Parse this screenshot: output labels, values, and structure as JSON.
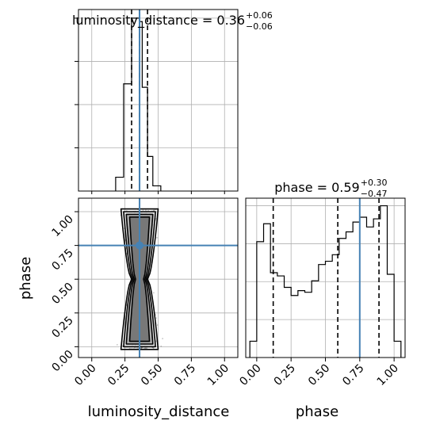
{
  "chart_data": {
    "type": "corner",
    "parameters": [
      "luminosity_distance",
      "phase"
    ],
    "truths": {
      "luminosity_distance": 0.36,
      "phase": 0.75
    },
    "panels": [
      {
        "id": "luminosity_distance-marginal",
        "type": "histogram-step",
        "title_param": "luminosity_distance",
        "title_median": "0.36",
        "title_plus": "+0.06",
        "title_minus": "−0.06",
        "xlim": [
          -0.1,
          1.1
        ],
        "bin_edges": [
          0.18,
          0.24,
          0.3,
          0.34,
          0.36,
          0.38,
          0.42,
          0.46,
          0.52
        ],
        "counts": [
          0.08,
          0.62,
          1.0,
          1.0,
          0.98,
          0.6,
          0.2,
          0.03
        ],
        "quantiles": [
          0.3,
          0.36,
          0.42
        ],
        "truth": 0.36
      },
      {
        "id": "phase-marginal",
        "type": "histogram-step",
        "title_param": "phase",
        "title_median": "0.59",
        "title_plus": "+0.30",
        "title_minus": "−0.47",
        "xlim": [
          -0.08,
          1.08
        ],
        "bin_edges": [
          -0.05,
          0.0,
          0.05,
          0.1,
          0.15,
          0.2,
          0.25,
          0.3,
          0.35,
          0.4,
          0.45,
          0.5,
          0.55,
          0.6,
          0.65,
          0.7,
          0.75,
          0.8,
          0.85,
          0.9,
          0.95,
          1.0,
          1.05
        ],
        "counts": [
          0.1,
          0.71,
          0.82,
          0.52,
          0.5,
          0.43,
          0.38,
          0.41,
          0.4,
          0.47,
          0.57,
          0.59,
          0.63,
          0.73,
          0.77,
          0.83,
          0.86,
          0.8,
          0.85,
          0.93,
          0.51,
          0.1
        ],
        "quantiles": [
          0.12,
          0.59,
          0.89
        ],
        "truth": 0.75
      },
      {
        "id": "joint-2d",
        "type": "contour-scatter",
        "x_param": "luminosity_distance",
        "y_param": "phase",
        "xlim": [
          -0.1,
          1.1
        ],
        "ylim": [
          -0.08,
          1.1
        ],
        "xticks": [
          "0.00",
          "0.25",
          "0.50",
          "0.75",
          "1.00"
        ],
        "yticks": [
          "0.00",
          "0.25",
          "0.50",
          "0.75",
          "1.00"
        ],
        "xlabel": "luminosity_distance",
        "ylabel": "phase",
        "truth": [
          0.36,
          0.75
        ],
        "contour_levels": [
          {
            "half_width_top": 0.14,
            "half_width_waist": 0.06,
            "y_range": [
              -0.02,
              1.02
            ]
          },
          {
            "half_width_top": 0.12,
            "half_width_waist": 0.05,
            "y_range": [
              0.0,
              1.0
            ]
          },
          {
            "half_width_top": 0.1,
            "half_width_waist": 0.04,
            "y_range": [
              0.02,
              0.98
            ]
          },
          {
            "half_width_top": 0.075,
            "half_width_waist": 0.03,
            "y_range": [
              0.04,
              0.96
            ]
          }
        ]
      }
    ],
    "phase_xticks": [
      "0.00",
      "0.25",
      "0.50",
      "0.75",
      "1.00"
    ],
    "phase_xlabel": "phase",
    "colors": {
      "truth": "#4682b4",
      "hist": "#000000",
      "grid": "#b0b0b0",
      "scatter": "#555555",
      "contour_fill": "#444444"
    }
  }
}
